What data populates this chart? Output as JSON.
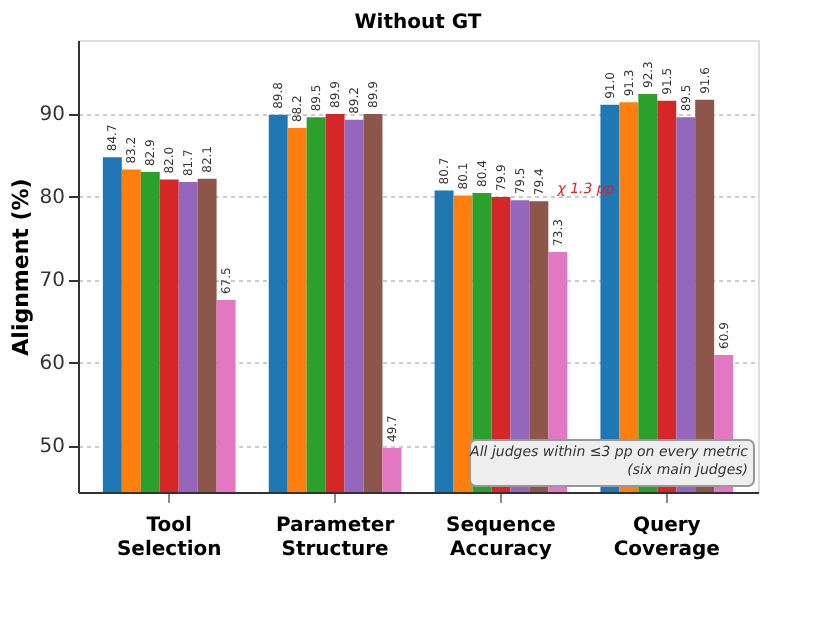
{
  "chart_data": {
    "type": "bar",
    "title": "Without GT",
    "ylabel": "Alignment (%)",
    "categories": [
      "Tool Selection",
      "Parameter Structure",
      "Sequence Accuracy",
      "Query Coverage"
    ],
    "series": [
      {
        "color": "#1f77b4",
        "values": [
          84.7,
          89.8,
          80.7,
          91.0
        ],
        "value_labels": [
          "84.7",
          "89.8",
          "80.7",
          "91.0"
        ]
      },
      {
        "color": "#ff7f0e",
        "values": [
          83.2,
          88.2,
          80.1,
          91.3
        ],
        "value_labels": [
          "83.2",
          "88.2",
          "80.1",
          "91.3"
        ]
      },
      {
        "color": "#2ca02c",
        "values": [
          82.9,
          89.5,
          80.4,
          92.3
        ],
        "value_labels": [
          "82.9",
          "89.5",
          "80.4",
          "92.3"
        ]
      },
      {
        "color": "#d62728",
        "values": [
          82.0,
          89.9,
          79.9,
          91.5
        ],
        "value_labels": [
          "82.0",
          "89.9",
          "79.9",
          "91.5"
        ]
      },
      {
        "color": "#9467bd",
        "values": [
          81.7,
          89.2,
          79.5,
          89.5
        ],
        "value_labels": [
          "81.7",
          "89.2",
          "79.5",
          "89.5"
        ]
      },
      {
        "color": "#8c564b",
        "values": [
          82.1,
          89.9,
          79.4,
          91.6
        ],
        "value_labels": [
          "82.1",
          "89.9",
          "79.4",
          "91.6"
        ]
      },
      {
        "color": "#e377c2",
        "values": [
          67.5,
          49.7,
          73.3,
          60.9
        ],
        "value_labels": [
          "67.5",
          "49.7",
          "73.3",
          "60.9"
        ]
      }
    ],
    "ylim": [
      44.4,
      98.8
    ],
    "yticks": [
      50,
      60,
      70,
      80,
      90
    ],
    "grid": "y",
    "legend": false,
    "annotations": [
      "χ 1.3 pp",
      "All judges within ≤3 pp on every metric\n(six main judges)"
    ]
  }
}
